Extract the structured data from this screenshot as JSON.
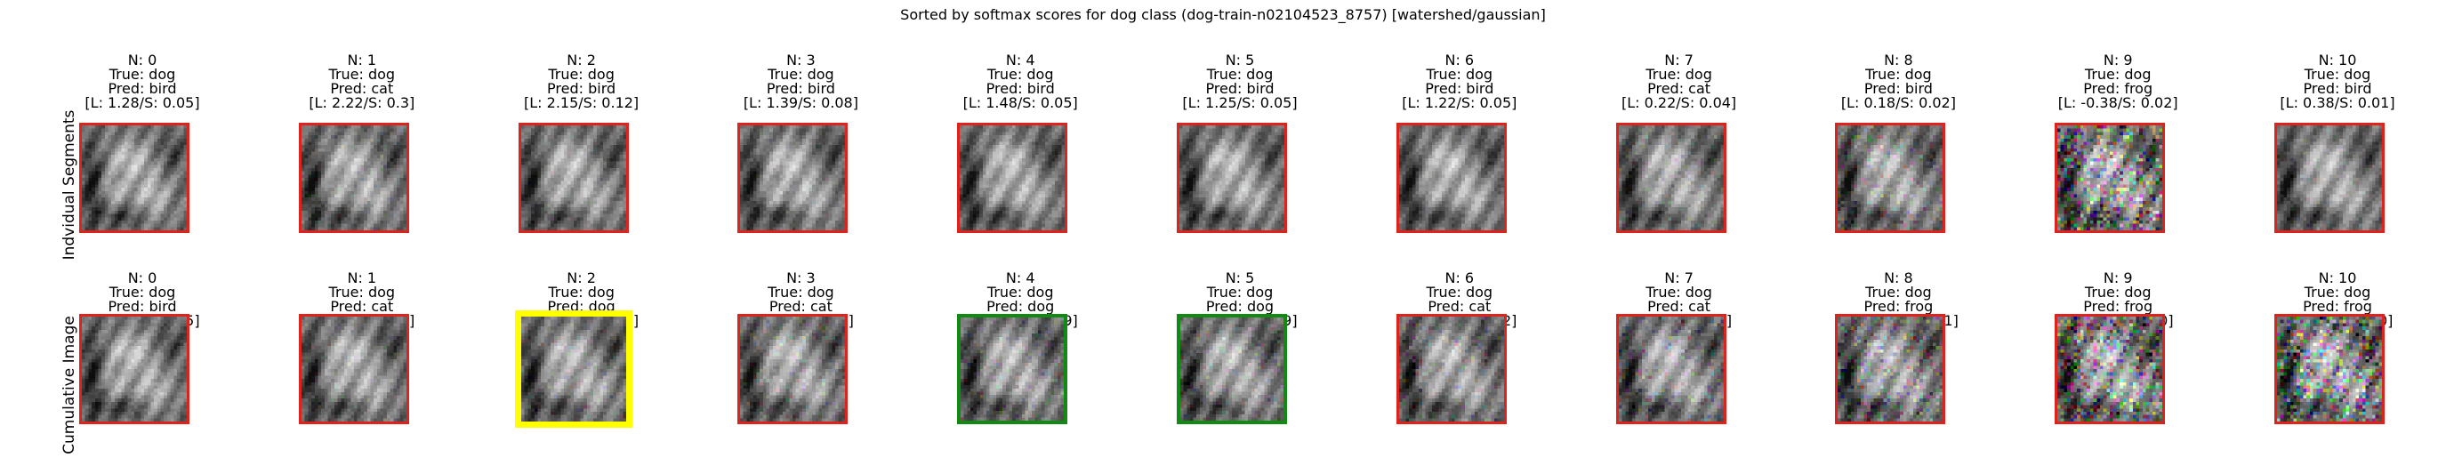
{
  "figure": {
    "title": "Sorted by softmax scores for dog class (dog-train-n02104523_8757) [watershed/gaussian]"
  },
  "rows": [
    {
      "label": "Indvidual Segments",
      "cells": [
        {
          "n": "N: 0",
          "true_label": "True: dog",
          "pred": "Pred: bird",
          "scores": "[L: 1.28/S: 0.05]",
          "border": "red",
          "noise": 0.0
        },
        {
          "n": "N: 1",
          "true_label": "True: dog",
          "pred": "Pred: cat",
          "scores": "[L: 2.22/S: 0.3]",
          "border": "red",
          "noise": 0.15
        },
        {
          "n": "N: 2",
          "true_label": "True: dog",
          "pred": "Pred: bird",
          "scores": "[L: 2.15/S: 0.12]",
          "border": "red",
          "noise": 0.1
        },
        {
          "n": "N: 3",
          "true_label": "True: dog",
          "pred": "Pred: bird",
          "scores": "[L: 1.39/S: 0.08]",
          "border": "red",
          "noise": 0.1
        },
        {
          "n": "N: 4",
          "true_label": "True: dog",
          "pred": "Pred: bird",
          "scores": "[L: 1.48/S: 0.05]",
          "border": "red",
          "noise": 0.05
        },
        {
          "n": "N: 5",
          "true_label": "True: dog",
          "pred": "Pred: bird",
          "scores": "[L: 1.25/S: 0.05]",
          "border": "red",
          "noise": 0.05
        },
        {
          "n": "N: 6",
          "true_label": "True: dog",
          "pred": "Pred: bird",
          "scores": "[L: 1.22/S: 0.05]",
          "border": "red",
          "noise": 0.05
        },
        {
          "n": "N: 7",
          "true_label": "True: dog",
          "pred": "Pred: cat",
          "scores": "[L: 0.22/S: 0.04]",
          "border": "red",
          "noise": 0.2
        },
        {
          "n": "N: 8",
          "true_label": "True: dog",
          "pred": "Pred: bird",
          "scores": "[L: 0.18/S: 0.02]",
          "border": "red",
          "noise": 0.35
        },
        {
          "n": "N: 9",
          "true_label": "True: dog",
          "pred": "Pred: frog",
          "scores": "[L: -0.38/S: 0.02]",
          "border": "red",
          "noise": 0.8
        },
        {
          "n": "N: 10",
          "true_label": "True: dog",
          "pred": "Pred: bird",
          "scores": "[L: 0.38/S: 0.01]",
          "border": "red",
          "noise": 0.15
        }
      ]
    },
    {
      "label": "Cumulative Image",
      "cells": [
        {
          "n": "N: 0",
          "true_label": "True: dog",
          "pred": "Pred: bird",
          "scores": "[L: 1.28/S: 0.05]",
          "border": "red",
          "noise": 0.0
        },
        {
          "n": "N: 1",
          "true_label": "True: dog",
          "pred": "Pred: cat",
          "scores": "[L: 2.22/S: 0.3]",
          "border": "red",
          "noise": 0.15
        },
        {
          "n": "N: 2",
          "true_label": "True: dog",
          "pred": "Pred: dog",
          "scores": "[L: 3.17/S: 0.63]",
          "border": "yellow",
          "noise": 0.2
        },
        {
          "n": "N: 3",
          "true_label": "True: dog",
          "pred": "Pred: cat",
          "scores": "[L: 2.77/S: 0.4]",
          "border": "red",
          "noise": 0.25
        },
        {
          "n": "N: 4",
          "true_label": "True: dog",
          "pred": "Pred: dog",
          "scores": "[L: 2.91/S: 0.49]",
          "border": "green",
          "noise": 0.25
        },
        {
          "n": "N: 5",
          "true_label": "True: dog",
          "pred": "Pred: dog",
          "scores": "[L: 2.96/S: 0.49]",
          "border": "green",
          "noise": 0.25
        },
        {
          "n": "N: 6",
          "true_label": "True: dog",
          "pred": "Pred: cat",
          "scores": "[L: 2.73/S: 0.42]",
          "border": "red",
          "noise": 0.3
        },
        {
          "n": "N: 7",
          "true_label": "True: dog",
          "pred": "Pred: cat",
          "scores": "[L: 0.1/S: 0.02]",
          "border": "red",
          "noise": 0.35
        },
        {
          "n": "N: 8",
          "true_label": "True: dog",
          "pred": "Pred: frog",
          "scores": "[L: -0.59/S: 0.01]",
          "border": "red",
          "noise": 0.5
        },
        {
          "n": "N: 9",
          "true_label": "True: dog",
          "pred": "Pred: frog",
          "scores": "[L: -0.91/S: 0.0]",
          "border": "red",
          "noise": 0.8
        },
        {
          "n": "N: 10",
          "true_label": "True: dog",
          "pred": "Pred: frog",
          "scores": "[L: -0.91/S: 0.0]",
          "border": "red",
          "noise": 0.85
        }
      ]
    }
  ],
  "colors": {
    "red": "#e0221c",
    "yellow": "#ffff00",
    "green": "#118a11"
  }
}
